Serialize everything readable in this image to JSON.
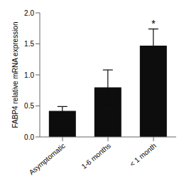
{
  "chart_data": {
    "type": "bar",
    "categories": [
      "Asymptomatic",
      "1-6 months",
      "< 1 month"
    ],
    "values": [
      0.42,
      0.8,
      1.47
    ],
    "errors": [
      0.07,
      0.28,
      0.27
    ],
    "significance": [
      null,
      null,
      "*"
    ],
    "color": "#0d0d0d",
    "ylabel": "FABP4 relative mRNA expression",
    "ylim": [
      0.0,
      2.0
    ],
    "yticks": [
      {
        "value": 0,
        "label": "0.0"
      },
      0.5,
      {
        "value": 1,
        "label": "1.0"
      },
      1.5,
      {
        "value": 2,
        "label": "2.0"
      }
    ],
    "grid": false
  }
}
